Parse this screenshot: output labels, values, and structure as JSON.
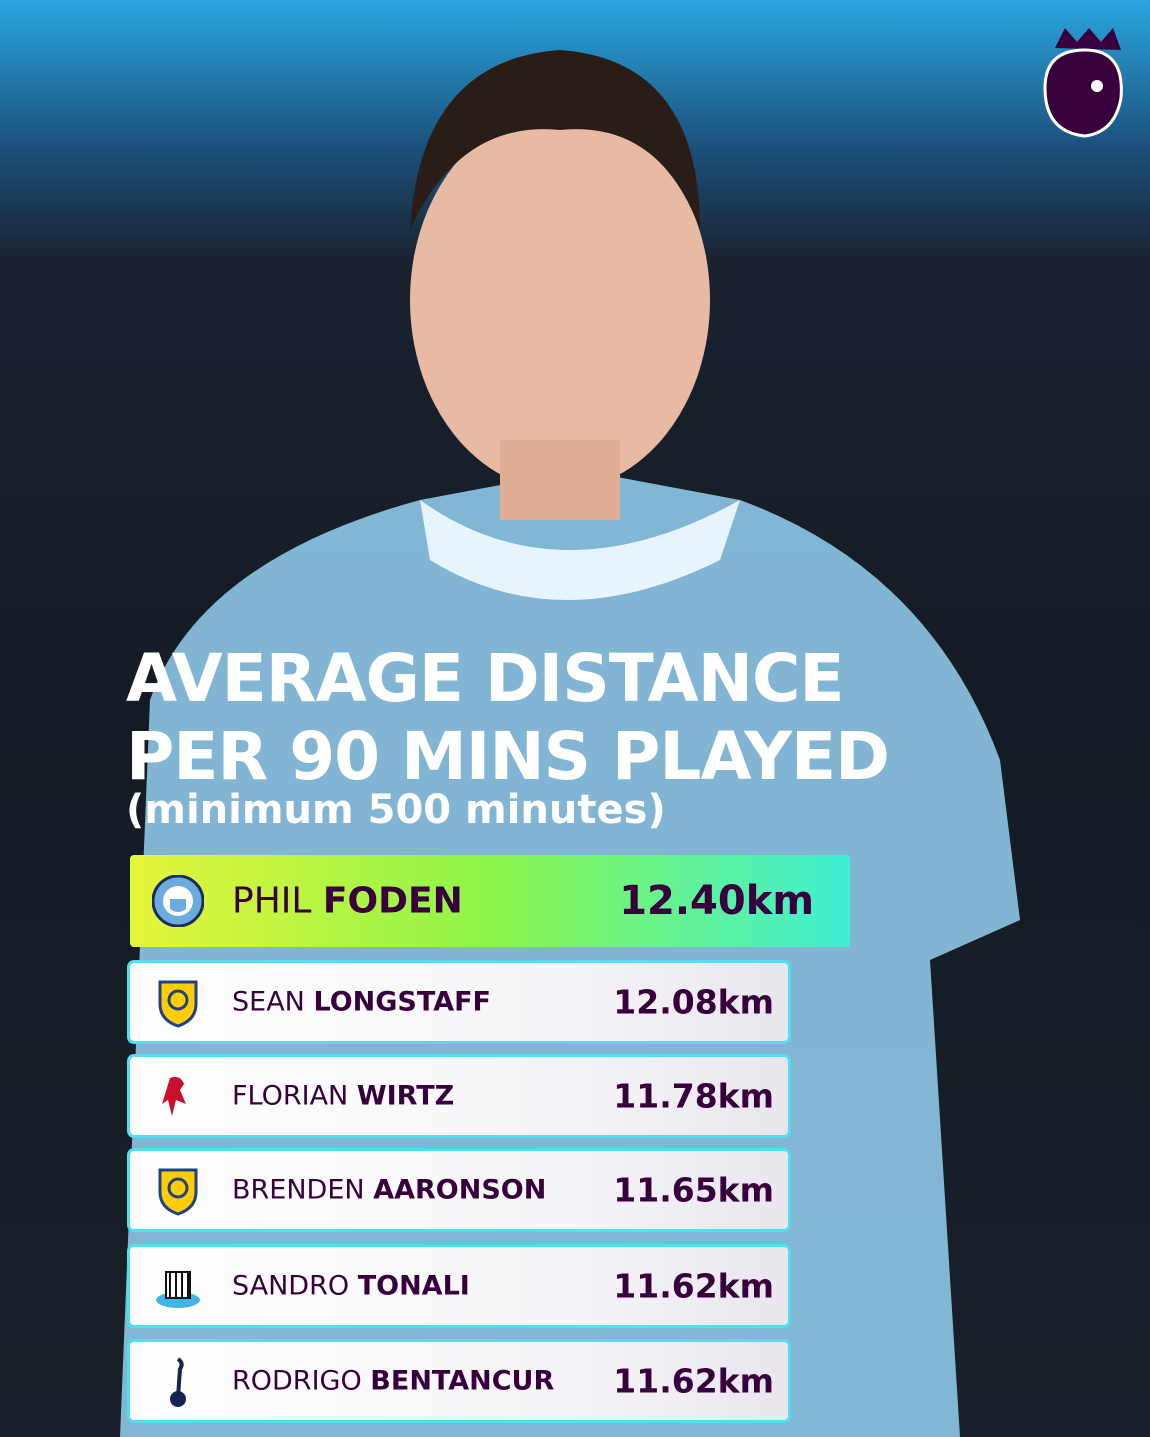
{
  "header": {
    "title_line1": "AVERAGE DISTANCE",
    "title_line2": "PER 90 MINS PLAYED",
    "subtitle": "(minimum 500 minutes)"
  },
  "rows": [
    {
      "first": "PHIL",
      "last": "FODEN",
      "distance": "12.40km"
    },
    {
      "first": "SEAN",
      "last": "LONGSTAFF",
      "distance": "12.08km"
    },
    {
      "first": "FLORIAN",
      "last": "WIRTZ",
      "distance": "11.78km"
    },
    {
      "first": "BRENDEN",
      "last": "AARONSON",
      "distance": "11.65km"
    },
    {
      "first": "SANDRO",
      "last": "TONALI",
      "distance": "11.62km"
    },
    {
      "first": "RODRIGO",
      "last": "BENTANCUR",
      "distance": "11.62km"
    }
  ]
}
